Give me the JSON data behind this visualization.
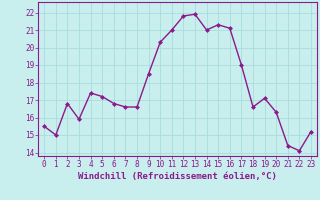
{
  "x": [
    0,
    1,
    2,
    3,
    4,
    5,
    6,
    7,
    8,
    9,
    10,
    11,
    12,
    13,
    14,
    15,
    16,
    17,
    18,
    19,
    20,
    21,
    22,
    23
  ],
  "y": [
    15.5,
    15.0,
    16.8,
    15.9,
    17.4,
    17.2,
    16.8,
    16.6,
    16.6,
    18.5,
    20.3,
    21.0,
    21.8,
    21.9,
    21.0,
    21.3,
    21.1,
    19.0,
    16.6,
    17.1,
    16.3,
    14.4,
    14.1,
    15.2
  ],
  "line_color": "#8b1a8b",
  "marker": "D",
  "marker_size": 2.0,
  "bg_color": "#c8eeee",
  "grid_color": "#aadddd",
  "xlabel": "Windchill (Refroidissement éolien,°C)",
  "xlim": [
    -0.5,
    23.5
  ],
  "ylim": [
    13.8,
    22.6
  ],
  "yticks": [
    14,
    15,
    16,
    17,
    18,
    19,
    20,
    21,
    22
  ],
  "xticks": [
    0,
    1,
    2,
    3,
    4,
    5,
    6,
    7,
    8,
    9,
    10,
    11,
    12,
    13,
    14,
    15,
    16,
    17,
    18,
    19,
    20,
    21,
    22,
    23
  ],
  "tick_color": "#8b1a8b",
  "label_color": "#8b1a8b",
  "xlabel_fontsize": 6.5,
  "tick_fontsize": 5.5,
  "linewidth": 1.0
}
